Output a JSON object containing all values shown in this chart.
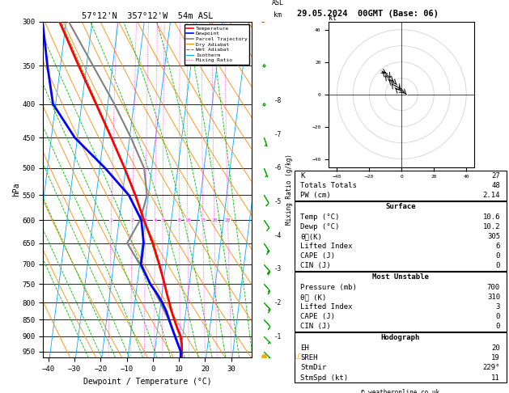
{
  "title_left": "57°12'N  357°12'W  54m ASL",
  "title_right": "29.05.2024  00GMT (Base: 06)",
  "xlabel": "Dewpoint / Temperature (°C)",
  "ylabel_left": "hPa",
  "temp_color": "#ff0000",
  "dewp_color": "#0000ff",
  "parcel_color": "#808080",
  "dry_adiabat_color": "#ff8800",
  "wet_adiabat_color": "#00bb00",
  "isotherm_color": "#00aaff",
  "mixing_ratio_color": "#ff00ff",
  "lcl_color": "#ffaa00",
  "background_color": "#ffffff",
  "xlim": [
    -42,
    38
  ],
  "pmin": 300,
  "pmax": 970,
  "skew": 32,
  "pressure_levels": [
    300,
    350,
    400,
    450,
    500,
    550,
    600,
    650,
    700,
    750,
    800,
    850,
    900,
    950
  ],
  "temp_data": {
    "pressure": [
      970,
      950,
      925,
      900,
      875,
      850,
      825,
      800,
      775,
      750,
      700,
      650,
      600,
      550,
      500,
      450,
      400,
      350,
      300
    ],
    "temp": [
      10.6,
      10.4,
      10.0,
      9.2,
      7.5,
      6.0,
      4.5,
      3.2,
      1.8,
      0.5,
      -2.5,
      -6.0,
      -10.5,
      -15.0,
      -20.5,
      -27.0,
      -34.5,
      -43.0,
      -52.5
    ],
    "dewp": [
      10.2,
      10.0,
      8.5,
      7.0,
      5.5,
      4.0,
      2.5,
      0.5,
      -2.0,
      -5.0,
      -9.5,
      -9.5,
      -11.5,
      -17.5,
      -28.0,
      -41.0,
      -51.0,
      -55.0,
      -59.0
    ]
  },
  "parcel_data": {
    "pressure": [
      970,
      950,
      900,
      850,
      800,
      750,
      700,
      650,
      600,
      550,
      500,
      450,
      400,
      350,
      300
    ],
    "temp": [
      10.6,
      10.0,
      7.2,
      3.8,
      -0.2,
      -4.8,
      -10.0,
      -15.8,
      -12.0,
      -10.5,
      -13.0,
      -19.5,
      -27.5,
      -37.5,
      -49.0
    ]
  },
  "mixing_ratio_values": [
    1,
    2,
    3,
    4,
    5,
    8,
    10,
    15,
    20,
    28
  ],
  "lcl_pressure": 967,
  "wind_barbs": {
    "pressures": [
      950,
      900,
      850,
      800,
      750,
      700,
      650,
      600,
      550,
      500,
      450,
      400,
      350,
      300
    ],
    "u": [
      -3,
      -5,
      -7,
      -9,
      -11,
      -13,
      -8,
      -6,
      -4,
      -2,
      -1,
      0,
      2,
      4
    ],
    "v": [
      3,
      5,
      8,
      10,
      13,
      15,
      12,
      9,
      7,
      5,
      3,
      2,
      1,
      -1
    ]
  },
  "hodograph_u": [
    -3,
    -5,
    -7,
    -9,
    -11,
    -13,
    -8,
    -6,
    -4,
    -2,
    -1,
    0,
    2,
    4
  ],
  "hodograph_v": [
    3,
    5,
    8,
    10,
    13,
    15,
    12,
    9,
    7,
    5,
    3,
    2,
    1,
    -1
  ],
  "stats": {
    "K": 27,
    "Totals_Totals": 48,
    "PW_cm": 2.14,
    "Surf_Temp": 10.6,
    "Surf_Dewp": 10.2,
    "Surf_ThetaE": 305,
    "Surf_LI": 6,
    "Surf_CAPE": 0,
    "Surf_CIN": 0,
    "MU_Press": 700,
    "MU_ThetaE": 310,
    "MU_LI": 3,
    "MU_CAPE": 0,
    "MU_CIN": 0,
    "EH": 20,
    "SREH": 19,
    "StmDir": 229,
    "StmSpd": 11
  }
}
